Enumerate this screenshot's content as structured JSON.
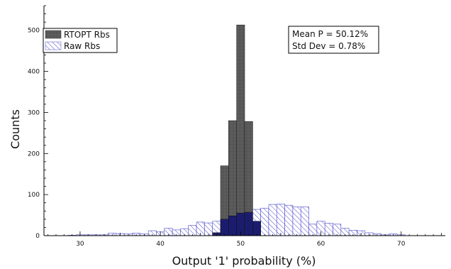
{
  "chart_data": {
    "type": "bar",
    "title": "",
    "xlabel": "Output '1' probability (%)",
    "ylabel": "Counts",
    "xlim": [
      25.5,
      75.5
    ],
    "ylim": [
      0,
      560
    ],
    "xticks": [
      "30",
      "40",
      "50",
      "60",
      "70"
    ],
    "yticks": [
      "0",
      "100",
      "200",
      "300",
      "400",
      "500"
    ],
    "xtick_values": [
      30,
      40,
      50,
      60,
      70
    ],
    "ytick_values": [
      0,
      100,
      200,
      300,
      400,
      500
    ],
    "legend_placement": "top-left",
    "stats_box": {
      "mean_label": "Mean P = 50.12%",
      "std_label": "Std Dev =  0.78%"
    },
    "series": [
      {
        "name": "RTOPT Rbs",
        "color": "#555555",
        "bin_width": 1,
        "x": [
          47,
          48,
          49,
          50,
          51,
          52
        ],
        "values": [
          7,
          170,
          280,
          513,
          278,
          35
        ]
      },
      {
        "name": "Raw Rbs",
        "color": "#4a4ac8",
        "bin_width": 1,
        "x": [
          29,
          30,
          31,
          32,
          33,
          34,
          35,
          36,
          37,
          38,
          39,
          40,
          41,
          42,
          43,
          44,
          45,
          46,
          47,
          48,
          49,
          50,
          51,
          52,
          53,
          54,
          55,
          56,
          57,
          58,
          59,
          60,
          61,
          62,
          63,
          64,
          65,
          66,
          67,
          68,
          69,
          70
        ],
        "values": [
          1,
          2,
          2,
          2,
          2,
          6,
          5,
          4,
          6,
          4,
          12,
          9,
          18,
          14,
          17,
          25,
          33,
          31,
          35,
          40,
          48,
          55,
          57,
          64,
          67,
          76,
          77,
          74,
          70,
          70,
          28,
          35,
          30,
          28,
          18,
          13,
          12,
          7,
          5,
          2,
          4,
          2
        ]
      }
    ]
  }
}
